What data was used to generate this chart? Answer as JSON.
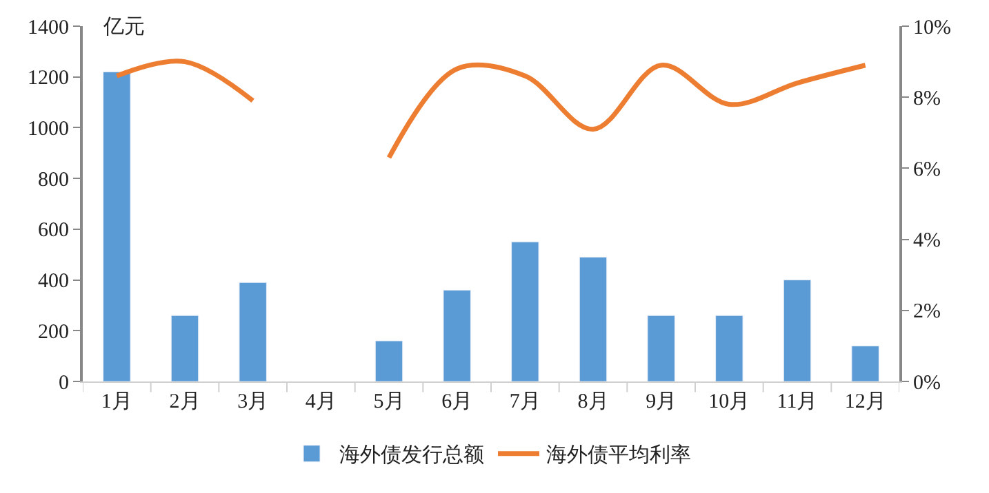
{
  "chart_data": {
    "type": "bar",
    "ylabel": "亿元",
    "categories": [
      "1月",
      "2月",
      "3月",
      "4月",
      "5月",
      "6月",
      "7月",
      "8月",
      "9月",
      "10月",
      "11月",
      "12月"
    ],
    "series": [
      {
        "name": "海外债发行总额",
        "color": "#5b9bd5",
        "values": [
          1220,
          260,
          390,
          null,
          160,
          360,
          550,
          490,
          260,
          260,
          400,
          140
        ]
      },
      {
        "name": "海外债平均利率",
        "type": "line",
        "axis": "y2",
        "color": "#ed7d31",
        "values": [
          8.6,
          9.0,
          7.9,
          null,
          6.3,
          8.8,
          8.6,
          7.1,
          8.9,
          7.8,
          8.4,
          8.9
        ]
      }
    ],
    "ylim": [
      0,
      1400
    ],
    "yticks": [
      0,
      200,
      400,
      600,
      800,
      1000,
      1200,
      1400
    ],
    "y2lim": [
      0,
      10
    ],
    "y2ticks": [
      {
        "value": 0,
        "label": "0%"
      },
      {
        "value": 2,
        "label": "2%"
      },
      {
        "value": 4,
        "label": "4%"
      },
      {
        "value": 6,
        "label": "6%"
      },
      {
        "value": 8,
        "label": "8%"
      },
      {
        "value": 10,
        "label": "10%"
      }
    ],
    "legend": "bottom"
  }
}
